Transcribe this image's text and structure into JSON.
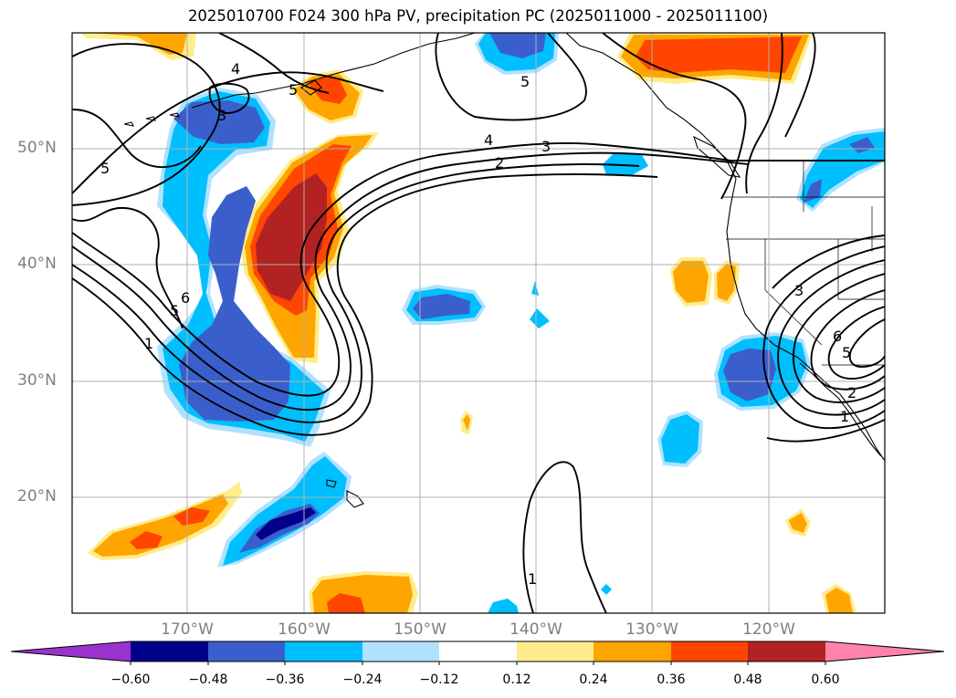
{
  "title": "2025010700 F024 300 hPa PV, precipitation PC (2025011000 - 2025011100)",
  "lat_labels": [
    "50°N",
    "40°N",
    "30°N",
    "20°N"
  ],
  "lon_labels": [
    "170°W",
    "160°W",
    "150°W",
    "140°W",
    "130°W",
    "120°W"
  ],
  "contour_labels": [
    "4",
    "3",
    "5",
    "5",
    "5",
    "4",
    "3",
    "2",
    "6",
    "5",
    "1",
    "1",
    "3",
    "6",
    "5",
    "2",
    "1"
  ],
  "colorbar": {
    "ticks": [
      "−0.60",
      "−0.48",
      "−0.36",
      "−0.24",
      "−0.12",
      "0.12",
      "0.24",
      "0.36",
      "0.48",
      "0.60"
    ],
    "colors": [
      "#9a32cd",
      "#00008b",
      "#3a5fcd",
      "#00bfff",
      "#b0e2ff",
      "#ffffff",
      "#ffec8b",
      "#ffa500",
      "#ff4500",
      "#b22222",
      "#ff82ab"
    ]
  }
}
